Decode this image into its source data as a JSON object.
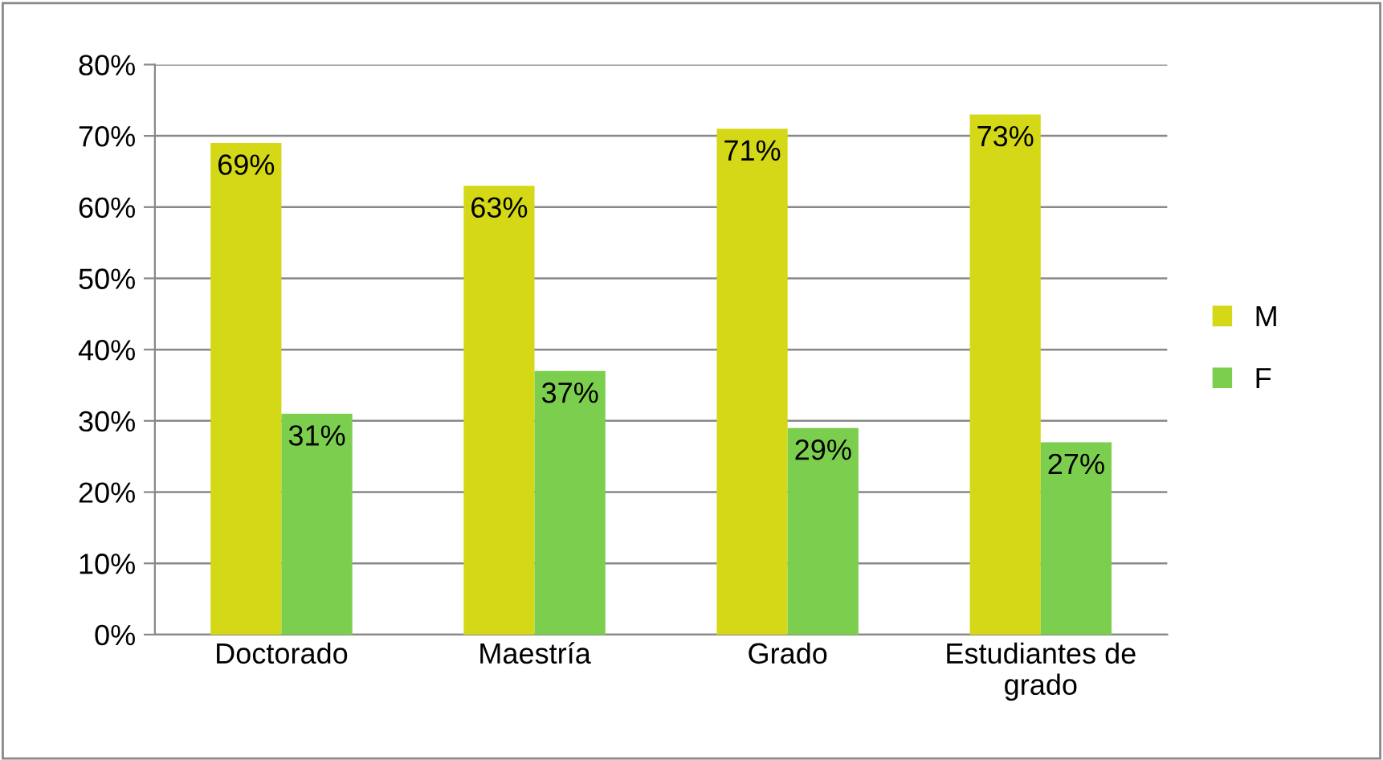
{
  "chart_data": {
    "type": "bar",
    "categories": [
      "Doctorado",
      "Maestría",
      "Grado",
      "Estudiantes de\ngrado"
    ],
    "series": [
      {
        "name": "M",
        "color": "#d4d816",
        "values": [
          69,
          63,
          71,
          73
        ],
        "value_labels": [
          "69%",
          "63%",
          "71%",
          "73%"
        ]
      },
      {
        "name": "F",
        "color": "#7ccf4e",
        "values": [
          31,
          37,
          29,
          27
        ],
        "value_labels": [
          "31%",
          "37%",
          "29%",
          "27%"
        ]
      }
    ],
    "ylim": [
      0,
      80
    ],
    "yticks": [
      {
        "value": 0,
        "label": "0%"
      },
      {
        "value": 10,
        "label": "10%"
      },
      {
        "value": 20,
        "label": "20%"
      },
      {
        "value": 30,
        "label": "30%"
      },
      {
        "value": 40,
        "label": "40%"
      },
      {
        "value": 50,
        "label": "50%"
      },
      {
        "value": 60,
        "label": "60%"
      },
      {
        "value": 70,
        "label": "70%"
      },
      {
        "value": 80,
        "label": "80%"
      }
    ],
    "grid": "y",
    "legend": "right"
  }
}
